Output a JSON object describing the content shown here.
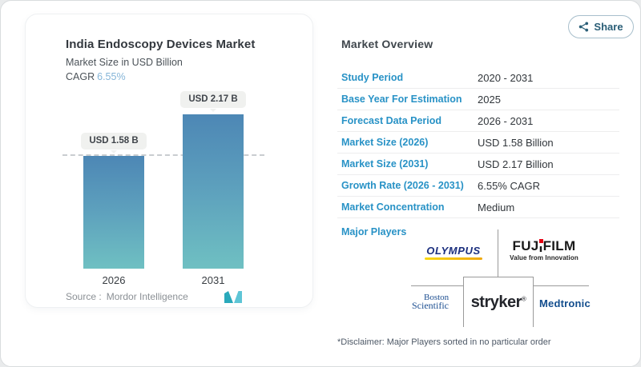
{
  "share": {
    "label": "Share"
  },
  "chart_card": {
    "title": "India Endoscopy Devices Market",
    "subtitle": "Market Size in USD Billion",
    "cagr_label": "CAGR",
    "cagr_value": "6.55%",
    "source_label": "Source :",
    "source_value": "Mordor Intelligence"
  },
  "chart_data": {
    "type": "bar",
    "title": "India Endoscopy Devices Market",
    "ylabel": "Market Size in USD Billion",
    "categories": [
      "2026",
      "2031"
    ],
    "values": [
      1.58,
      2.17
    ],
    "value_labels": [
      "USD 1.58 B",
      "USD 2.17 B"
    ],
    "ylim": [
      0,
      2.4
    ],
    "grid": false,
    "reference_line": 1.58,
    "legend": "none"
  },
  "overview": {
    "title": "Market Overview",
    "rows": [
      {
        "label": "Study Period",
        "value": "2020 - 2031"
      },
      {
        "label": "Base Year For Estimation",
        "value": "2025"
      },
      {
        "label": "Forecast Data Period",
        "value": "2026 - 2031"
      },
      {
        "label": "Market Size (2026)",
        "value": "USD 1.58 Billion"
      },
      {
        "label": "Market Size (2031)",
        "value": "USD 2.17 Billion"
      },
      {
        "label": "Growth Rate (2026 - 2031)",
        "value": "6.55% CAGR"
      },
      {
        "label": "Market Concentration",
        "value": "Medium"
      }
    ],
    "major_players_label": "Major Players",
    "players": {
      "olympus": "OLYMPUS",
      "fujifilm": {
        "parts": [
          "FUJ",
          "I",
          "FILM"
        ],
        "tagline": "Value from Innovation"
      },
      "boston": {
        "line1": "Boston",
        "line2": "Scientific"
      },
      "stryker": {
        "name": "stryker",
        "reg": "®"
      },
      "medtronic": "Medtronic"
    },
    "disclaimer": "*Disclaimer: Major Players sorted in no particular order"
  },
  "icons": {
    "share": "share-icon",
    "mordor_logo": "mordor-intelligence-logo"
  },
  "colors": {
    "accent": "#2892c6",
    "cagr-blue": "#85b5d8",
    "bar-top": "#4d87b5",
    "bar-bottom": "#6fc0c2",
    "pill-bg": "#f0f1ef",
    "share-color": "#2a5e77",
    "olympus-navy": "#1b2f7e",
    "fuji-black": "#1a1a1a",
    "fuji-red": "#e60012",
    "boston-navy": "#1d4f91",
    "stryker-navy": "#23252b",
    "medtronic-navy": "#124d8d",
    "mordor-teal": "#2aa9bb",
    "mordor-lightblue": "#5ec5d6"
  }
}
